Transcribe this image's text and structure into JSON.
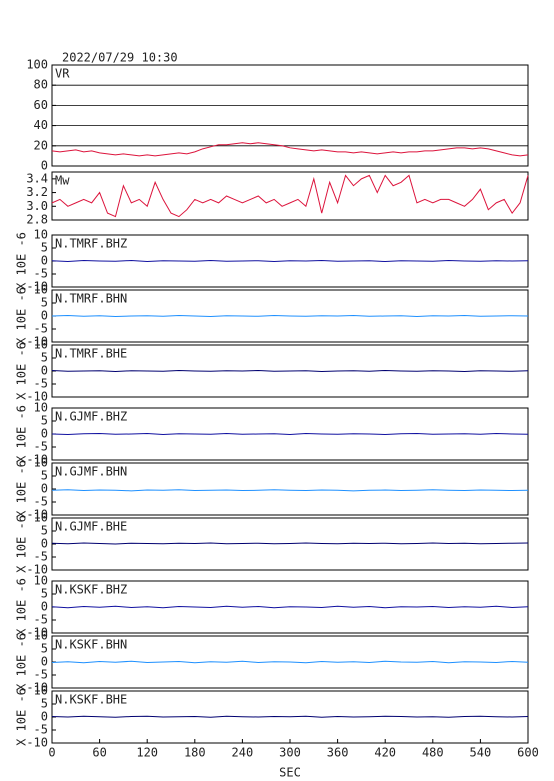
{
  "chart_data": [
    {
      "type": "line",
      "title": "2022/07/29 10:30",
      "label": "VR",
      "color": "#dc143c",
      "grid": true,
      "xlim": [
        0,
        600
      ],
      "ylim": [
        0,
        100
      ],
      "yticks": [
        0,
        20,
        40,
        60,
        80,
        100
      ],
      "x": [
        0,
        10,
        20,
        30,
        40,
        50,
        60,
        70,
        80,
        90,
        100,
        110,
        120,
        130,
        140,
        150,
        160,
        170,
        180,
        190,
        200,
        210,
        220,
        230,
        240,
        250,
        260,
        270,
        280,
        290,
        300,
        310,
        320,
        330,
        340,
        350,
        360,
        370,
        380,
        390,
        400,
        410,
        420,
        430,
        440,
        450,
        460,
        470,
        480,
        490,
        500,
        510,
        520,
        530,
        540,
        550,
        560,
        570,
        580,
        590,
        600
      ],
      "values": [
        15,
        14,
        15,
        16,
        14,
        15,
        13,
        12,
        11,
        12,
        11,
        10,
        11,
        10,
        11,
        12,
        13,
        12,
        14,
        17,
        19,
        21,
        21,
        22,
        23,
        22,
        23,
        22,
        21,
        20,
        18,
        17,
        16,
        15,
        16,
        15,
        14,
        14,
        13,
        14,
        13,
        12,
        13,
        14,
        13,
        14,
        14,
        15,
        15,
        16,
        17,
        18,
        18,
        17,
        18,
        17,
        15,
        13,
        11,
        10,
        11
      ]
    },
    {
      "type": "line",
      "label": "Mw",
      "color": "#dc143c",
      "xlim": [
        0,
        600
      ],
      "ylim": [
        2.8,
        3.5
      ],
      "yticks": [
        {
          "value": 2.8,
          "label": "2.8"
        },
        {
          "value": 3.0,
          "label": "3.0"
        },
        {
          "value": 3.2,
          "label": "3.2"
        },
        {
          "value": 3.4,
          "label": "3.4"
        }
      ],
      "x": [
        0,
        10,
        20,
        30,
        40,
        50,
        60,
        70,
        80,
        90,
        100,
        110,
        120,
        130,
        140,
        150,
        160,
        170,
        180,
        190,
        200,
        210,
        220,
        230,
        240,
        250,
        260,
        270,
        280,
        290,
        300,
        310,
        320,
        330,
        340,
        350,
        360,
        370,
        380,
        390,
        400,
        410,
        420,
        430,
        440,
        450,
        460,
        470,
        480,
        490,
        500,
        510,
        520,
        530,
        540,
        550,
        560,
        570,
        580,
        590,
        600
      ],
      "values": [
        3.05,
        3.1,
        3.0,
        3.05,
        3.1,
        3.05,
        3.2,
        2.9,
        2.85,
        3.3,
        3.05,
        3.1,
        3.0,
        3.35,
        3.1,
        2.9,
        2.85,
        2.95,
        3.1,
        3.05,
        3.1,
        3.05,
        3.15,
        3.1,
        3.05,
        3.1,
        3.15,
        3.05,
        3.1,
        3.0,
        3.05,
        3.1,
        3.0,
        3.4,
        2.9,
        3.35,
        3.05,
        3.45,
        3.3,
        3.4,
        3.45,
        3.2,
        3.45,
        3.3,
        3.35,
        3.45,
        3.05,
        3.1,
        3.05,
        3.1,
        3.1,
        3.05,
        3.0,
        3.1,
        3.25,
        2.95,
        3.05,
        3.1,
        2.9,
        3.05,
        3.45
      ]
    },
    {
      "type": "line",
      "label": "N.TMRF.BHZ",
      "ylabel": "X 10E -6",
      "color": "#1010a0",
      "xlim": [
        0,
        600
      ],
      "ylim": [
        -10,
        10
      ],
      "yticks": [
        -10,
        -5,
        0,
        5,
        10
      ],
      "x": [
        0,
        20,
        40,
        60,
        80,
        100,
        120,
        140,
        160,
        180,
        200,
        220,
        240,
        260,
        280,
        300,
        320,
        340,
        360,
        380,
        400,
        420,
        440,
        460,
        480,
        500,
        520,
        540,
        560,
        580,
        600
      ],
      "values": [
        0.1,
        -0.2,
        0.2,
        0,
        -0.1,
        0.2,
        -0.2,
        0.1,
        0,
        -0.1,
        0.2,
        -0.1,
        0,
        0.1,
        -0.2,
        0.1,
        0,
        0.2,
        -0.1,
        0,
        0.1,
        -0.2,
        0.1,
        0,
        -0.1,
        0.2,
        0,
        -0.1,
        0.1,
        0,
        0.1
      ]
    },
    {
      "type": "line",
      "label": "N.TMRF.BHN",
      "ylabel": "X 10E -6",
      "color": "#1e90ff",
      "xlim": [
        0,
        600
      ],
      "ylim": [
        -10,
        10
      ],
      "yticks": [
        -10,
        -5,
        0,
        5,
        10
      ],
      "x": [
        0,
        20,
        40,
        60,
        80,
        100,
        120,
        140,
        160,
        180,
        200,
        220,
        240,
        260,
        280,
        300,
        320,
        340,
        360,
        380,
        400,
        420,
        440,
        460,
        480,
        500,
        520,
        540,
        560,
        580,
        600
      ],
      "values": [
        0,
        0.2,
        -0.1,
        0.1,
        -0.2,
        0,
        0.1,
        -0.1,
        0.2,
        0,
        -0.2,
        0.1,
        0,
        -0.1,
        0.2,
        0,
        -0.1,
        0.1,
        0,
        0.2,
        -0.1,
        0,
        0.1,
        -0.2,
        0.1,
        0,
        0.2,
        -0.1,
        0,
        0.1,
        0
      ]
    },
    {
      "type": "line",
      "label": "N.TMRF.BHE",
      "ylabel": "X 10E -6",
      "color": "#000070",
      "xlim": [
        0,
        600
      ],
      "ylim": [
        -10,
        10
      ],
      "yticks": [
        -10,
        -5,
        0,
        5,
        10
      ],
      "x": [
        0,
        20,
        40,
        60,
        80,
        100,
        120,
        140,
        160,
        180,
        200,
        220,
        240,
        260,
        280,
        300,
        320,
        340,
        360,
        380,
        400,
        420,
        440,
        460,
        480,
        500,
        520,
        540,
        560,
        580,
        600
      ],
      "values": [
        0.2,
        -0.1,
        0,
        0.1,
        -0.2,
        0.1,
        0,
        -0.1,
        0.2,
        0,
        -0.1,
        0.1,
        0,
        0.2,
        -0.1,
        0,
        0.1,
        -0.2,
        0,
        0.1,
        -0.1,
        0.2,
        0,
        -0.1,
        0.1,
        0,
        -0.2,
        0.1,
        0,
        -0.1,
        0.1
      ]
    },
    {
      "type": "line",
      "label": "N.GJMF.BHZ",
      "ylabel": "X 10E -6",
      "color": "#1010a0",
      "xlim": [
        0,
        600
      ],
      "ylim": [
        -10,
        10
      ],
      "yticks": [
        -10,
        -5,
        0,
        5,
        10
      ],
      "x": [
        0,
        20,
        40,
        60,
        80,
        100,
        120,
        140,
        160,
        180,
        200,
        220,
        240,
        260,
        280,
        300,
        320,
        340,
        360,
        380,
        400,
        420,
        440,
        460,
        480,
        500,
        520,
        540,
        560,
        580,
        600
      ],
      "values": [
        0,
        -0.2,
        0.1,
        0.2,
        -0.1,
        0,
        0.2,
        -0.2,
        0.1,
        0,
        -0.1,
        0.2,
        -0.1,
        0,
        0.1,
        -0.2,
        0.2,
        0,
        -0.1,
        0.1,
        0,
        -0.2,
        0.1,
        0.2,
        -0.1,
        0,
        0.1,
        -0.1,
        0.2,
        0,
        -0.1
      ]
    },
    {
      "type": "line",
      "label": "N.GJMF.BHN",
      "ylabel": "X 10E -6",
      "color": "#1e90ff",
      "xlim": [
        0,
        600
      ],
      "ylim": [
        -10,
        10
      ],
      "yticks": [
        -10,
        -5,
        0,
        5,
        10
      ],
      "x": [
        0,
        20,
        40,
        60,
        80,
        100,
        120,
        140,
        160,
        180,
        200,
        220,
        240,
        260,
        280,
        300,
        320,
        340,
        360,
        380,
        400,
        420,
        440,
        460,
        480,
        500,
        520,
        540,
        560,
        580,
        600
      ],
      "values": [
        -0.5,
        -0.3,
        -0.6,
        -0.4,
        -0.5,
        -0.7,
        -0.4,
        -0.5,
        -0.3,
        -0.6,
        -0.5,
        -0.4,
        -0.6,
        -0.5,
        -0.3,
        -0.5,
        -0.6,
        -0.4,
        -0.5,
        -0.7,
        -0.5,
        -0.4,
        -0.6,
        -0.5,
        -0.3,
        -0.5,
        -0.6,
        -0.4,
        -0.5,
        -0.6,
        -0.5
      ]
    },
    {
      "type": "line",
      "label": "N.GJMF.BHE",
      "ylabel": "X 10E -6",
      "color": "#000070",
      "xlim": [
        0,
        600
      ],
      "ylim": [
        -10,
        10
      ],
      "yticks": [
        -10,
        -5,
        0,
        5,
        10
      ],
      "x": [
        0,
        20,
        40,
        60,
        80,
        100,
        120,
        140,
        160,
        180,
        200,
        220,
        240,
        260,
        280,
        300,
        320,
        340,
        360,
        380,
        400,
        420,
        440,
        460,
        480,
        500,
        520,
        540,
        560,
        580,
        600
      ],
      "values": [
        0.3,
        0.1,
        0.4,
        0.2,
        0,
        0.3,
        0.2,
        0.1,
        0.3,
        0.2,
        0.4,
        0.1,
        0.2,
        0.3,
        0.1,
        0.2,
        0.4,
        0.2,
        0.1,
        0.3,
        0.2,
        0.3,
        0.1,
        0.2,
        0.4,
        0.2,
        0.3,
        0.1,
        0.2,
        0.3,
        0.4
      ]
    },
    {
      "type": "line",
      "label": "N.KSKF.BHZ",
      "ylabel": "X 10E -6",
      "color": "#1010a0",
      "xlim": [
        0,
        600
      ],
      "ylim": [
        -10,
        10
      ],
      "yticks": [
        -10,
        -5,
        0,
        5,
        10
      ],
      "x": [
        0,
        20,
        40,
        60,
        80,
        100,
        120,
        140,
        160,
        180,
        200,
        220,
        240,
        260,
        280,
        300,
        320,
        340,
        360,
        380,
        400,
        420,
        440,
        460,
        480,
        500,
        520,
        540,
        560,
        580,
        600
      ],
      "values": [
        0.1,
        -0.3,
        0.2,
        -0.1,
        0.3,
        -0.2,
        0.1,
        -0.3,
        0.2,
        0,
        -0.2,
        0.3,
        -0.1,
        0.2,
        -0.3,
        0.1,
        0,
        -0.2,
        0.3,
        -0.1,
        0.2,
        -0.3,
        0.1,
        0,
        0.2,
        -0.2,
        0.1,
        -0.1,
        0.3,
        -0.2,
        0.1
      ]
    },
    {
      "type": "line",
      "label": "N.KSKF.BHN",
      "ylabel": "X 10E -6",
      "color": "#1e90ff",
      "xlim": [
        0,
        600
      ],
      "ylim": [
        -10,
        10
      ],
      "yticks": [
        -10,
        -5,
        0,
        5,
        10
      ],
      "x": [
        0,
        20,
        40,
        60,
        80,
        100,
        120,
        140,
        160,
        180,
        200,
        220,
        240,
        260,
        280,
        300,
        320,
        340,
        360,
        380,
        400,
        420,
        440,
        460,
        480,
        500,
        520,
        540,
        560,
        580,
        600
      ],
      "values": [
        -0.2,
        0.1,
        -0.3,
        0.2,
        -0.1,
        0.3,
        -0.2,
        0,
        0.2,
        -0.3,
        0.1,
        -0.1,
        0.3,
        -0.2,
        0.1,
        0,
        -0.3,
        0.2,
        -0.1,
        0.1,
        -0.2,
        0.3,
        0,
        -0.1,
        0.2,
        -0.3,
        0.1,
        0,
        -0.2,
        0.2,
        -0.1
      ]
    },
    {
      "type": "line",
      "label": "N.KSKF.BHE",
      "ylabel": "X 10E -6",
      "color": "#000070",
      "xlim": [
        0,
        600
      ],
      "ylim": [
        -10,
        10
      ],
      "yticks": [
        -10,
        -5,
        0,
        5,
        10
      ],
      "xticks": [
        0,
        60,
        120,
        180,
        240,
        300,
        360,
        420,
        480,
        540,
        600
      ],
      "xlabel": "SEC",
      "x": [
        0,
        20,
        40,
        60,
        80,
        100,
        120,
        140,
        160,
        180,
        200,
        220,
        240,
        260,
        280,
        300,
        320,
        340,
        360,
        380,
        400,
        420,
        440,
        460,
        480,
        500,
        520,
        540,
        560,
        580,
        600
      ],
      "values": [
        0.2,
        0,
        0.3,
        0.1,
        -0.1,
        0.2,
        0.3,
        0,
        0.1,
        0.2,
        -0.1,
        0.3,
        0.1,
        0,
        0.2,
        0.1,
        0.3,
        -0.1,
        0.2,
        0,
        0.1,
        0.3,
        0.2,
        0,
        0.1,
        -0.1,
        0.2,
        0.3,
        0.1,
        0,
        0.2
      ]
    }
  ]
}
